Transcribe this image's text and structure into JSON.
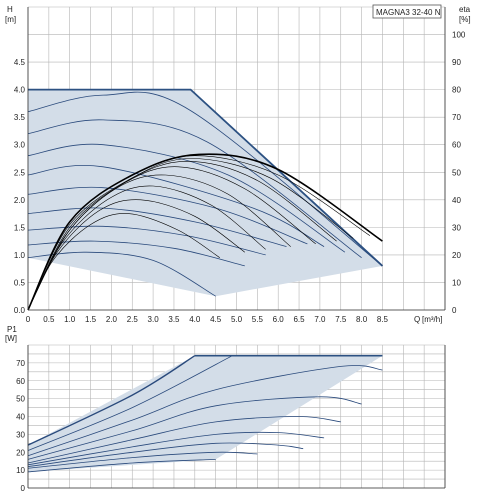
{
  "chart_data": [
    {
      "type": "line",
      "title": "MAGNA3 32-40 N",
      "ylabel": "H",
      "ylabel_unit": "[m]",
      "xlabel": "Q",
      "xlabel_unit": "[m³/h]",
      "y2label": "eta",
      "y2label_unit": "[%]",
      "xlim": [
        0,
        10
      ],
      "ylim": [
        0,
        5.5
      ],
      "y2lim": [
        0,
        110
      ],
      "xticks": [
        "0",
        "0.5",
        "1.0",
        "1.5",
        "2.0",
        "2.5",
        "3.0",
        "3.5",
        "4.0",
        "4.5",
        "5.0",
        "5.5",
        "6.0",
        "6.5",
        "7.0",
        "7.5",
        "8.0",
        "8.5"
      ],
      "yticks": [
        "0.0",
        "0.5",
        "1.0",
        "1.5",
        "2.0",
        "2.5",
        "3.0",
        "3.5",
        "4.0",
        "4.5"
      ],
      "y2ticks": [
        "0",
        "10",
        "20",
        "30",
        "40",
        "50",
        "60",
        "70",
        "80",
        "90",
        "100"
      ],
      "grid": true,
      "operating_area": [
        [
          0,
          4.0
        ],
        [
          3.9,
          4.0
        ],
        [
          8.5,
          0.8
        ],
        [
          4.5,
          0.25
        ],
        [
          0,
          0.95
        ]
      ],
      "head_curves": [
        {
          "values": [
            [
              0,
              3.6
            ],
            [
              1.8,
              3.9
            ],
            [
              3.9,
              3.62
            ],
            [
              8.5,
              0.8
            ]
          ]
        },
        {
          "values": [
            [
              0,
              3.2
            ],
            [
              1.8,
              3.45
            ],
            [
              4.3,
              3.05
            ],
            [
              8.0,
              0.95
            ]
          ]
        },
        {
          "values": [
            [
              0,
              2.8
            ],
            [
              1.8,
              3.0
            ],
            [
              4.8,
              2.45
            ],
            [
              7.6,
              1.05
            ]
          ]
        },
        {
          "values": [
            [
              0,
              2.45
            ],
            [
              1.8,
              2.6
            ],
            [
              5.4,
              1.85
            ],
            [
              7.1,
              1.15
            ]
          ]
        },
        {
          "values": [
            [
              0,
              2.1
            ],
            [
              1.8,
              2.22
            ],
            [
              4.5,
              1.85
            ],
            [
              6.7,
              1.2
            ]
          ]
        },
        {
          "values": [
            [
              0,
              1.75
            ],
            [
              1.8,
              1.85
            ],
            [
              4.0,
              1.6
            ],
            [
              6.2,
              1.15
            ]
          ]
        },
        {
          "values": [
            [
              0,
              1.45
            ],
            [
              1.8,
              1.52
            ],
            [
              3.8,
              1.35
            ],
            [
              5.7,
              1.0
            ]
          ]
        },
        {
          "values": [
            [
              0,
              1.18
            ],
            [
              1.6,
              1.25
            ],
            [
              3.5,
              1.12
            ],
            [
              5.2,
              0.8
            ]
          ]
        },
        {
          "values": [
            [
              0,
              0.95
            ],
            [
              1.4,
              1.05
            ],
            [
              3.0,
              0.9
            ],
            [
              4.5,
              0.25
            ]
          ]
        }
      ],
      "efficiency_curves": [
        {
          "values": [
            [
              0,
              0
            ],
            [
              1.0,
              32
            ],
            [
              2.5,
              49
            ],
            [
              4.1,
              56.5
            ],
            [
              6.0,
              51
            ],
            [
              8.5,
              25
            ]
          ]
        },
        {
          "values": [
            [
              0,
              0
            ],
            [
              1.0,
              32
            ],
            [
              2.5,
              49
            ],
            [
              4.0,
              56
            ],
            [
              6.0,
              49
            ],
            [
              8.2,
              27
            ]
          ]
        },
        {
          "values": [
            [
              0,
              0
            ],
            [
              1.0,
              31
            ],
            [
              2.5,
              48
            ],
            [
              3.9,
              55
            ],
            [
              5.8,
              48
            ],
            [
              7.8,
              26
            ]
          ]
        },
        {
          "values": [
            [
              0,
              0
            ],
            [
              1.0,
              30
            ],
            [
              2.4,
              47
            ],
            [
              3.8,
              54
            ],
            [
              5.5,
              47
            ],
            [
              7.4,
              25
            ]
          ]
        },
        {
          "values": [
            [
              0,
              0
            ],
            [
              1.0,
              29
            ],
            [
              2.3,
              46
            ],
            [
              3.6,
              52
            ],
            [
              5.2,
              44
            ],
            [
              6.9,
              24
            ]
          ]
        },
        {
          "values": [
            [
              0,
              0
            ],
            [
              0.9,
              27
            ],
            [
              2.1,
              44
            ],
            [
              3.3,
              49
            ],
            [
              4.8,
              42
            ],
            [
              6.3,
              23
            ]
          ]
        },
        {
          "values": [
            [
              0,
              0
            ],
            [
              0.8,
              24
            ],
            [
              1.9,
              40
            ],
            [
              3.0,
              45
            ],
            [
              4.4,
              38
            ],
            [
              5.7,
              22
            ]
          ]
        },
        {
          "values": [
            [
              0,
              0
            ],
            [
              0.7,
              21
            ],
            [
              1.7,
              36
            ],
            [
              2.7,
              40
            ],
            [
              4.0,
              34
            ],
            [
              5.2,
              21
            ]
          ]
        },
        {
          "values": [
            [
              0,
              0
            ],
            [
              0.6,
              18
            ],
            [
              1.5,
              31
            ],
            [
              2.4,
              35
            ],
            [
              3.6,
              29
            ],
            [
              4.6,
              19
            ]
          ]
        }
      ]
    },
    {
      "type": "line",
      "title": "",
      "ylabel": "P1",
      "ylabel_unit": "[W]",
      "xlim": [
        0,
        10
      ],
      "ylim": [
        0,
        80
      ],
      "yticks": [
        "0",
        "10",
        "20",
        "30",
        "40",
        "50",
        "60",
        "70"
      ],
      "grid": true,
      "operating_area": [
        [
          0,
          24
        ],
        [
          4.0,
          74
        ],
        [
          8.5,
          74
        ],
        [
          4.5,
          16
        ],
        [
          0,
          9
        ]
      ],
      "power_curves": [
        {
          "values": [
            [
              0,
              24
            ],
            [
              2.5,
              52
            ],
            [
              4.0,
              74
            ]
          ]
        },
        {
          "values": [
            [
              0,
              21
            ],
            [
              2.5,
              45
            ],
            [
              4.9,
              74
            ]
          ]
        },
        {
          "values": [
            [
              0,
              18
            ],
            [
              2.5,
              38
            ],
            [
              4.5,
              55
            ],
            [
              7.5,
              68
            ],
            [
              8.5,
              66
            ]
          ]
        },
        {
          "values": [
            [
              0,
              16
            ],
            [
              2.5,
              32
            ],
            [
              4.5,
              46
            ],
            [
              7.0,
              51
            ],
            [
              8.0,
              47
            ]
          ]
        },
        {
          "values": [
            [
              0,
              14
            ],
            [
              2.5,
              27
            ],
            [
              4.5,
              37
            ],
            [
              6.5,
              40
            ],
            [
              7.5,
              37
            ]
          ]
        },
        {
          "values": [
            [
              0,
              13
            ],
            [
              2.5,
              23
            ],
            [
              4.5,
              30
            ],
            [
              6.0,
              31
            ],
            [
              7.1,
              28
            ]
          ]
        },
        {
          "values": [
            [
              0,
              12
            ],
            [
              2.5,
              20
            ],
            [
              4.5,
              25
            ],
            [
              6.0,
              24
            ],
            [
              6.6,
              22
            ]
          ]
        },
        {
          "values": [
            [
              0,
              11
            ],
            [
              2.5,
              17
            ],
            [
              4.5,
              20
            ],
            [
              5.5,
              19
            ]
          ]
        },
        {
          "values": [
            [
              0,
              9
            ],
            [
              2.5,
              14
            ],
            [
              4.5,
              16
            ]
          ]
        }
      ]
    }
  ]
}
